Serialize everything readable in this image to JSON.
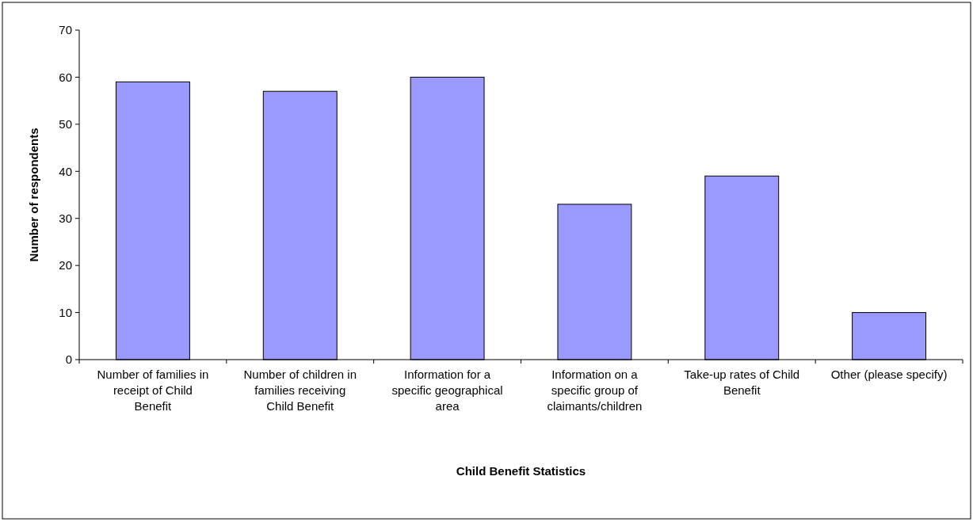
{
  "chart_data": {
    "type": "bar",
    "xlabel": "Child Benefit Statistics",
    "ylabel": "Number of respondents",
    "categories": [
      "Number of families in receipt of Child Benefit",
      "Number of children in families receiving Child Benefit",
      "Information for a specific geographical area",
      "Information on a specific group of claimants/children",
      "Take-up rates of Child Benefit",
      "Other (please specify)"
    ],
    "values": [
      59,
      57,
      60,
      33,
      39,
      10
    ],
    "color": "#9999ff",
    "ylim": [
      0,
      70
    ],
    "yticks": [
      0,
      10,
      20,
      30,
      40,
      50,
      60,
      70
    ],
    "grid": false
  }
}
